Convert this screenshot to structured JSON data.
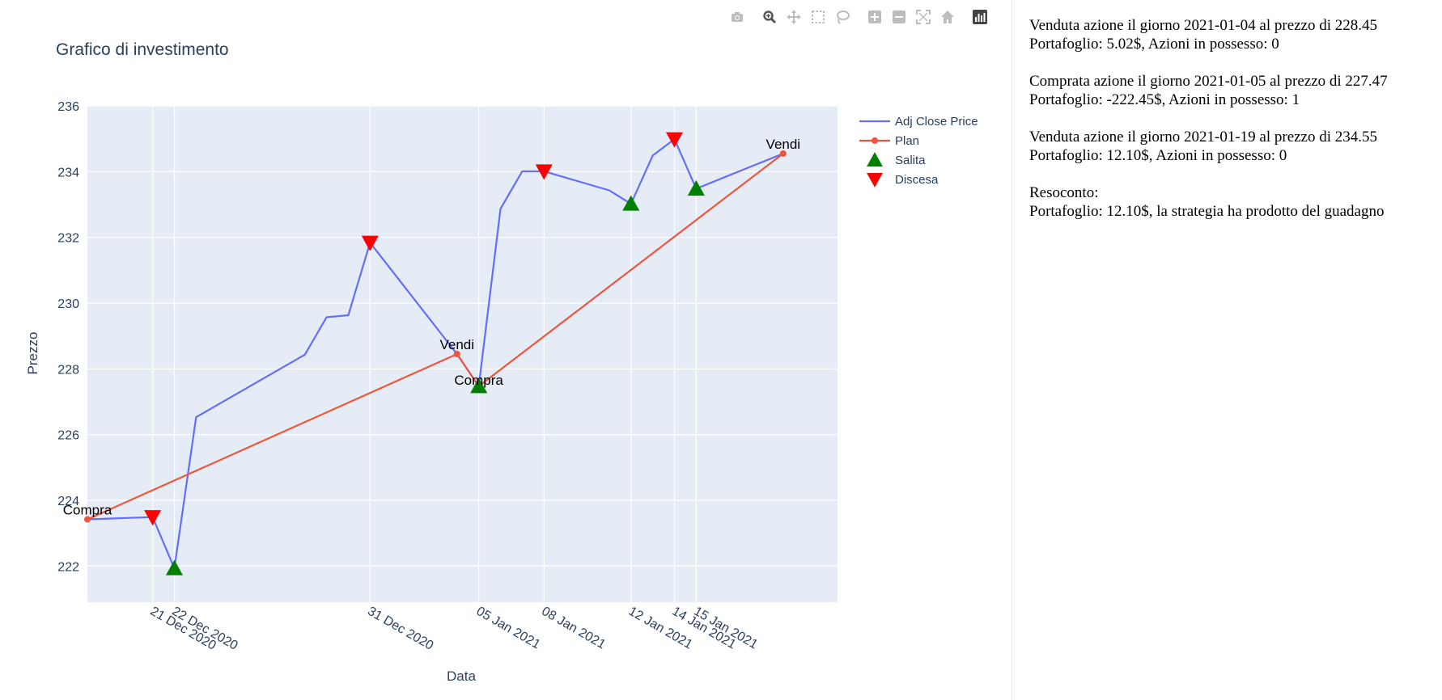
{
  "chart_data": {
    "type": "line",
    "title": "Grafico di investimento",
    "xlabel": "Data",
    "ylabel": "Prezzo",
    "ylim": [
      220.9,
      236.0
    ],
    "xlim": [
      "2020-12-18T00:00",
      "2021-01-21T12:00"
    ],
    "yticks": [
      222,
      224,
      226,
      228,
      230,
      232,
      234,
      236
    ],
    "xticks": [
      {
        "date": "2020-12-21",
        "label": "21 Dec 2020"
      },
      {
        "date": "2020-12-22",
        "label": "22 Dec 2020"
      },
      {
        "date": "2020-12-31",
        "label": "31 Dec 2020"
      },
      {
        "date": "2021-01-05",
        "label": "05 Jan 2021"
      },
      {
        "date": "2021-01-08",
        "label": "08 Jan 2021"
      },
      {
        "date": "2021-01-12",
        "label": "12 Jan 2021"
      },
      {
        "date": "2021-01-14",
        "label": "14 Jan 2021"
      },
      {
        "date": "2021-01-15",
        "label": "15 Jan 2021"
      }
    ],
    "grid": true,
    "legend_position": "top-right",
    "series": [
      {
        "name": "Adj Close Price",
        "color": "#636efa",
        "mode": "line",
        "x": [
          "2020-12-18",
          "2020-12-21",
          "2020-12-22",
          "2020-12-23",
          "2020-12-28",
          "2020-12-29",
          "2020-12-30",
          "2020-12-31",
          "2021-01-04",
          "2021-01-05",
          "2021-01-06",
          "2021-01-07",
          "2021-01-08",
          "2021-01-11",
          "2021-01-12",
          "2021-01-13",
          "2021-01-14",
          "2021-01-15",
          "2021-01-19"
        ],
        "values": [
          223.42,
          223.49,
          221.93,
          226.53,
          228.43,
          229.57,
          229.63,
          231.84,
          228.45,
          227.47,
          232.87,
          234.01,
          234.01,
          233.43,
          233.02,
          234.49,
          234.99,
          233.48,
          234.55
        ]
      },
      {
        "name": "Plan",
        "color": "#ef553b",
        "mode": "lines+markers",
        "x": [
          "2020-12-18",
          "2021-01-04",
          "2021-01-05",
          "2021-01-19"
        ],
        "values": [
          223.42,
          228.45,
          227.47,
          234.55
        ],
        "labels": [
          "Compra",
          "Vendi",
          "Compra",
          "Vendi"
        ]
      },
      {
        "name": "Salita",
        "color": "#008000",
        "mode": "markers",
        "marker": "triangle-up",
        "x": [
          "2020-12-22",
          "2021-01-05",
          "2021-01-12",
          "2021-01-15"
        ],
        "values": [
          221.93,
          227.47,
          233.02,
          233.48
        ]
      },
      {
        "name": "Discesa",
        "color": "#ff0000",
        "mode": "markers",
        "marker": "triangle-down",
        "x": [
          "2020-12-21",
          "2020-12-31",
          "2021-01-08",
          "2021-01-14"
        ],
        "values": [
          223.49,
          231.84,
          234.01,
          234.99
        ]
      }
    ]
  },
  "modebar": {
    "icons": [
      "camera-icon",
      "zoom-icon",
      "pan-icon",
      "box-select-icon",
      "lasso-icon",
      "zoom-in-icon",
      "zoom-out-icon",
      "autoscale-icon",
      "home-icon",
      "plotly-logo-icon"
    ],
    "color": "#bdbdbd",
    "active_color": "#555555"
  },
  "info": {
    "blocks": [
      {
        "lines": [
          "Venduta azione il giorno 2021-01-04 al prezzo di 228.45",
          "Portafoglio: 5.02$, Azioni in possesso: 0"
        ]
      },
      {
        "lines": [
          "Comprata azione il giorno 2021-01-05 al prezzo di 227.47",
          "Portafoglio: -222.45$, Azioni in possesso: 1"
        ]
      },
      {
        "lines": [
          "Venduta azione il giorno 2021-01-19 al prezzo di 234.55",
          "Portafoglio: 12.10$, Azioni in possesso: 0"
        ]
      },
      {
        "lines": [
          "Resoconto:",
          "Portafoglio: 12.10$, la strategia ha prodotto del guadagno"
        ]
      }
    ]
  }
}
